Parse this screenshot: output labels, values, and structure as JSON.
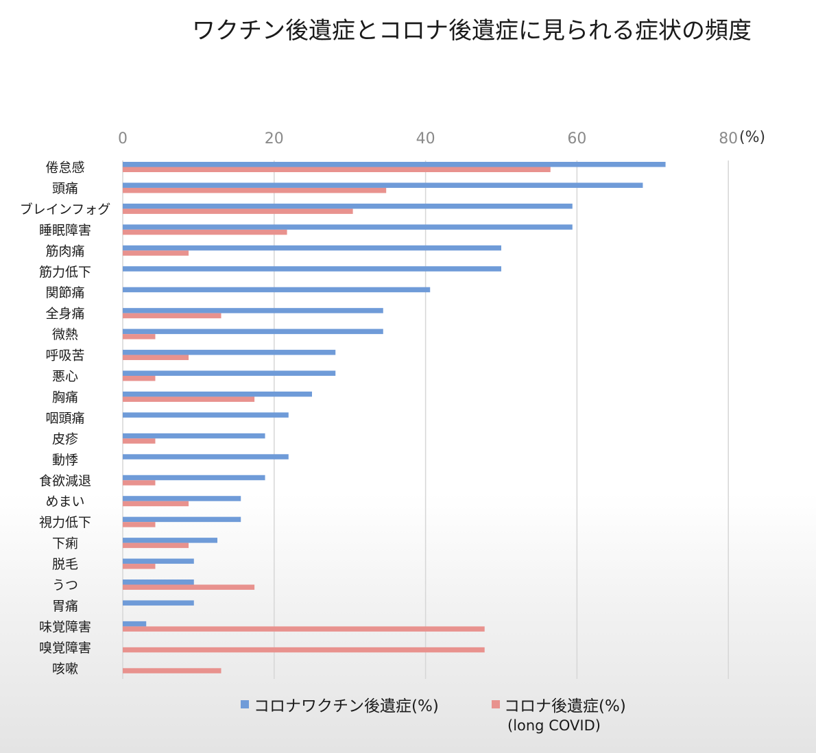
{
  "chart_data": {
    "type": "bar",
    "orientation": "horizontal",
    "title": "ワクチン後遺症とコロナ後遺症に見られる症状の頻度",
    "xaxis_unit": "(%)",
    "xlim": [
      0,
      80
    ],
    "xticks": [
      "0",
      "20",
      "40",
      "60",
      "80"
    ],
    "grid": true,
    "legend_position": "bottom",
    "categories": [
      "倦怠感",
      "頭痛",
      "ブレインフォグ",
      "睡眠障害",
      "筋肉痛",
      "筋力低下",
      "関節痛",
      "全身痛",
      "微熱",
      "呼吸苦",
      "悪心",
      "胸痛",
      "咽頭痛",
      "皮疹",
      "動悸",
      "食欲減退",
      "めまい",
      "視力低下",
      "下痢",
      "脱毛",
      "うつ",
      "胃痛",
      "味覚障害",
      "嗅覚障害",
      "咳嗽"
    ],
    "series": [
      {
        "name": "コロナワクチン後遺症(%)",
        "color": "#6f9bd8",
        "values": [
          71.7,
          68.7,
          59.4,
          59.4,
          50.0,
          50.0,
          40.6,
          34.4,
          34.4,
          28.1,
          28.1,
          25.0,
          21.9,
          18.8,
          21.9,
          18.8,
          15.6,
          15.6,
          12.5,
          9.4,
          9.4,
          9.4,
          3.1,
          0,
          0
        ]
      },
      {
        "name": "コロナ後遺症(%)",
        "name_sub": "(long COVID)",
        "color": "#e8928e",
        "values": [
          56.5,
          34.8,
          30.4,
          21.7,
          8.7,
          0,
          0,
          13.0,
          4.3,
          8.7,
          4.3,
          17.4,
          0,
          4.3,
          0,
          4.3,
          8.7,
          4.3,
          8.7,
          4.3,
          17.4,
          0,
          47.8,
          47.8,
          13.0
        ]
      }
    ]
  }
}
